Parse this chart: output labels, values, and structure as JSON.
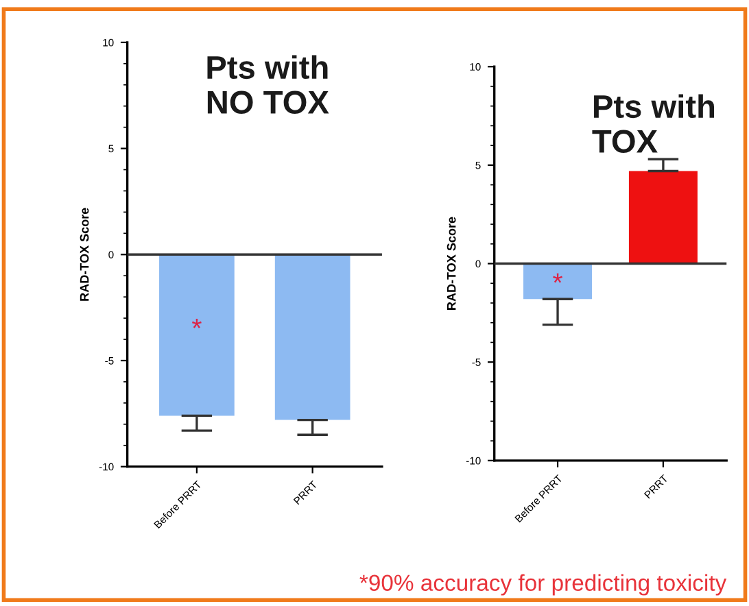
{
  "chart_data": [
    {
      "type": "bar",
      "title": "Pts with\nNO TOX",
      "ylabel": "RAD-TOX Score",
      "categories": [
        "Before PRRT",
        "PRRT"
      ],
      "values": [
        -7.6,
        -7.8
      ],
      "colors": [
        "#8dbaf2",
        "#8dbaf2"
      ],
      "errors": [
        [
          -8.3,
          -7.6
        ],
        [
          -8.5,
          -7.8
        ]
      ],
      "ylim": [
        -10,
        10
      ],
      "yticks": [
        -10,
        -5,
        0,
        5,
        10
      ],
      "ref_lines": [
        {
          "axis": "y",
          "value": 0
        }
      ],
      "annotations": [
        "*",
        "*90% accuracy for predicting toxicity"
      ]
    },
    {
      "type": "bar",
      "title": "Pts with\nTOX",
      "ylabel": "RAD-TOX Score",
      "categories": [
        "Before PRRT",
        "PRRT"
      ],
      "values": [
        -1.8,
        4.7
      ],
      "colors": [
        "#8dbaf2",
        "#ee1111"
      ],
      "errors": [
        [
          -3.1,
          -1.8
        ],
        [
          4.7,
          5.3
        ]
      ],
      "ylim": [
        -10,
        10
      ],
      "yticks": [
        -10,
        -5,
        0,
        5,
        10
      ],
      "ref_lines": [
        {
          "axis": "y",
          "value": 0
        }
      ],
      "annotations": [
        "*"
      ]
    }
  ]
}
